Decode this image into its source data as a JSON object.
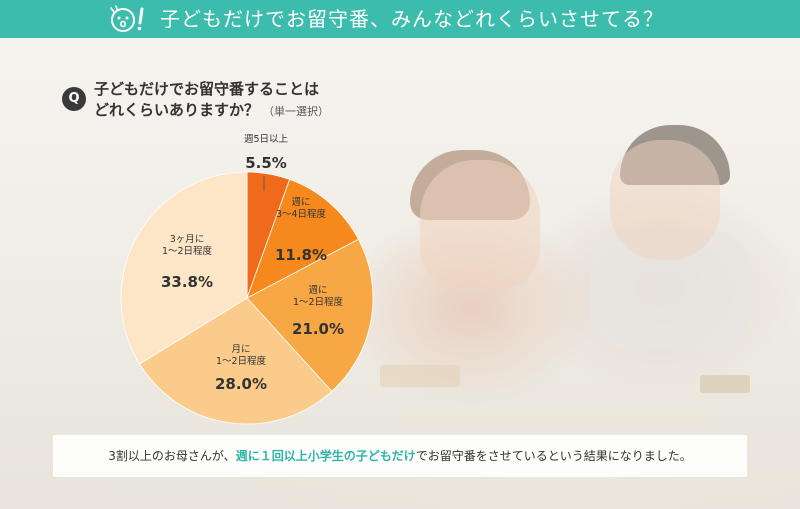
{
  "header": {
    "title": "子どもだけでお留守番、みんなどれくらいさせてる？"
  },
  "question": {
    "badge": "Q",
    "line1": "子どもだけでお留守番することは",
    "line2": "どれくらいありますか？",
    "note": "（単一選択）"
  },
  "chart_data": {
    "type": "pie",
    "unit": "%",
    "slices": [
      {
        "label": "週5日以上",
        "value": 5.5,
        "color": "#f06a1c"
      },
      {
        "label": "週に 3〜4日程度",
        "value": 11.8,
        "color": "#f5891e"
      },
      {
        "label": "週に 1〜2日程度",
        "value": 21.0,
        "color": "#f7a744"
      },
      {
        "label": "月に 1〜2日程度",
        "value": 28.0,
        "color": "#fbcb8c"
      },
      {
        "label": "3ヶ月に 1〜2日程度",
        "value": 33.8,
        "color": "#fde6c8"
      }
    ],
    "label_lines": [
      [
        "週5日以上"
      ],
      [
        "週に",
        "3〜4日程度"
      ],
      [
        "週に",
        "1〜2日程度"
      ],
      [
        "月に",
        "1〜2日程度"
      ],
      [
        "3ヶ月に",
        "1〜2日程度"
      ]
    ],
    "value_text": [
      "5.5%",
      "11.8%",
      "21.0%",
      "28.0%",
      "33.8%"
    ]
  },
  "footer": {
    "before": "3割以上のお母さんが、",
    "highlight": "週に１回以上小学生の子どもだけ",
    "after": "でお留守番をさせているという結果になりました。"
  },
  "colors": {
    "header": "#3cbcad",
    "highlight": "#2fb4a5"
  }
}
